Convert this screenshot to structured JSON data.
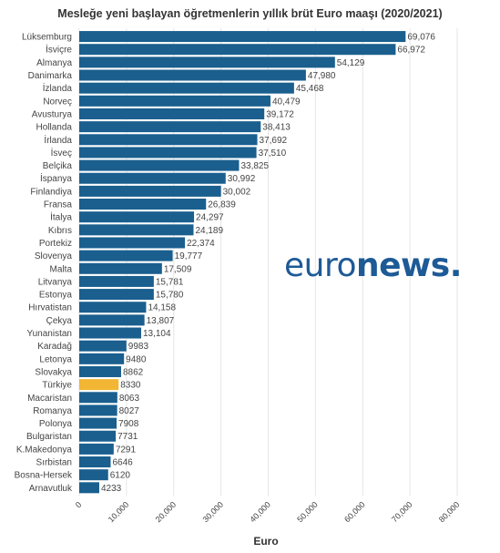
{
  "chart_data": {
    "type": "bar",
    "orientation": "horizontal",
    "title": "Mesleğe yeni başlayan öğretmenlerin yıllık brüt Euro maaşı (2020/2021)",
    "xlabel": "Euro",
    "ylabel": "",
    "xlim": [
      0,
      80000
    ],
    "x_ticks": [
      "0",
      "10,000",
      "20,000",
      "30,000",
      "40,000",
      "50,000",
      "60,000",
      "70,000",
      "80,000"
    ],
    "grid": true,
    "categories": [
      "Lüksemburg",
      "İsviçre",
      "Almanya",
      "Danimarka",
      "İzlanda",
      "Norveç",
      "Avusturya",
      "Hollanda",
      "İrlanda",
      "İsveç",
      "Belçika",
      "İspanya",
      "Finlandiya",
      "Fransa",
      "İtalya",
      "Kıbrıs",
      "Portekiz",
      "Slovenya",
      "Malta",
      "Litvanya",
      "Estonya",
      "Hırvatistan",
      "Çekya",
      "Yunanistan",
      "Karadağ",
      "Letonya",
      "Slovakya",
      "Türkiye",
      "Macaristan",
      "Romanya",
      "Polonya",
      "Bulgaristan",
      "K.Makedonya",
      "Sırbistan",
      "Bosna-Hersek",
      "Arnavutluk"
    ],
    "values": [
      69076,
      66972,
      54129,
      47980,
      45468,
      40479,
      39172,
      38413,
      37692,
      37510,
      33825,
      30992,
      30002,
      26839,
      24297,
      24189,
      22374,
      19777,
      17509,
      15781,
      15780,
      14158,
      13807,
      13104,
      9983,
      9480,
      8862,
      8330,
      8063,
      8027,
      7908,
      7731,
      7291,
      6646,
      6120,
      4233
    ],
    "value_labels": [
      "69,076",
      "66,972",
      "54,129",
      "47,980",
      "45,468",
      "40,479",
      "39,172",
      "38,413",
      "37,692",
      "37,510",
      "33,825",
      "30,992",
      "30,002",
      "26,839",
      "24,297",
      "24,189",
      "22,374",
      "19,777",
      "17,509",
      "15,781",
      "15,780",
      "14,158",
      "13,807",
      "13,104",
      "9983",
      "9480",
      "8862",
      "8330",
      "8063",
      "8027",
      "7908",
      "7731",
      "7291",
      "6646",
      "6120",
      "4233"
    ],
    "highlight_category": "Türkiye",
    "colors": {
      "bar": "#1a5f8e",
      "highlight": "#f2b634",
      "grid": "#e6e6e6",
      "text": "#444444"
    }
  },
  "watermark": {
    "part1": "euro",
    "part2": "news."
  }
}
